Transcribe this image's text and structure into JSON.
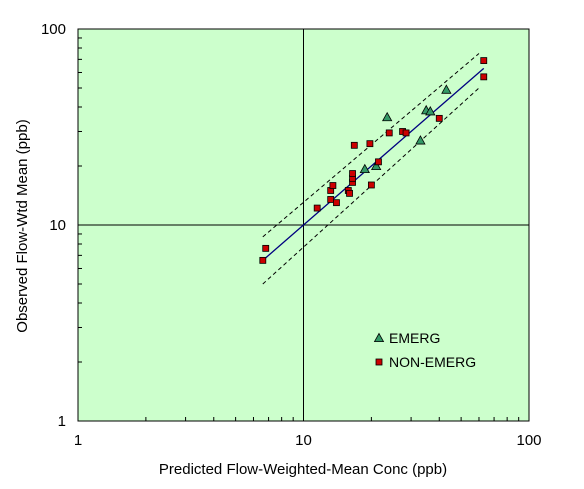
{
  "chart_data": {
    "type": "scatter",
    "title": "",
    "xlabel": "Predicted Flow-Weighted-Mean Conc (ppb)",
    "ylabel": "Observed  Flow-Wtd Mean (ppb)",
    "x_scale": "log",
    "y_scale": "log",
    "xlim": [
      1,
      100
    ],
    "ylim": [
      1,
      100
    ],
    "x_ticks": [
      "1",
      "10",
      "100"
    ],
    "y_ticks": [
      "1",
      "10",
      "100"
    ],
    "reference_lines": {
      "x": 10,
      "y": 10
    },
    "legend_position": "lower-right",
    "colors": {
      "plot_background": "#ccffcc",
      "emerg_marker": "#339966",
      "non_emerg_marker": "#cc0000",
      "fit_line": "#000080",
      "band_line": "#000000"
    },
    "series": [
      {
        "name": "EMERG",
        "marker": "triangle",
        "points": [
          [
            18.7,
            19.3
          ],
          [
            21.0,
            20.0
          ],
          [
            23.5,
            35.5
          ],
          [
            33.0,
            27.0
          ],
          [
            35.0,
            38.5
          ],
          [
            36.5,
            38.0
          ],
          [
            43.0,
            49.0
          ]
        ]
      },
      {
        "name": "NON-EMERG",
        "marker": "square",
        "points": [
          [
            6.6,
            6.6
          ],
          [
            6.8,
            7.6
          ],
          [
            11.5,
            12.2
          ],
          [
            13.2,
            13.5
          ],
          [
            13.2,
            15.0
          ],
          [
            13.5,
            15.9
          ],
          [
            14.0,
            13.0
          ],
          [
            15.8,
            15.0
          ],
          [
            16.0,
            14.5
          ],
          [
            16.5,
            16.5
          ],
          [
            16.5,
            17.3
          ],
          [
            16.5,
            18.3
          ],
          [
            16.8,
            25.5
          ],
          [
            19.7,
            26.0
          ],
          [
            20.0,
            16.0
          ],
          [
            21.5,
            21.0
          ],
          [
            24.0,
            29.5
          ],
          [
            27.5,
            30.0
          ],
          [
            28.5,
            29.5
          ],
          [
            40.0,
            35.0
          ],
          [
            63.0,
            69.0
          ],
          [
            63.0,
            57.0
          ]
        ]
      }
    ],
    "fit_line": {
      "x": [
        6.6,
        63.0
      ],
      "y": [
        6.6,
        63.0
      ]
    },
    "confidence_band": {
      "upper": {
        "x": [
          6.6,
          60.0
        ],
        "y": [
          8.7,
          75.0
        ]
      },
      "lower": {
        "x": [
          6.6,
          60.0
        ],
        "y": [
          5.0,
          50.0
        ]
      }
    }
  }
}
